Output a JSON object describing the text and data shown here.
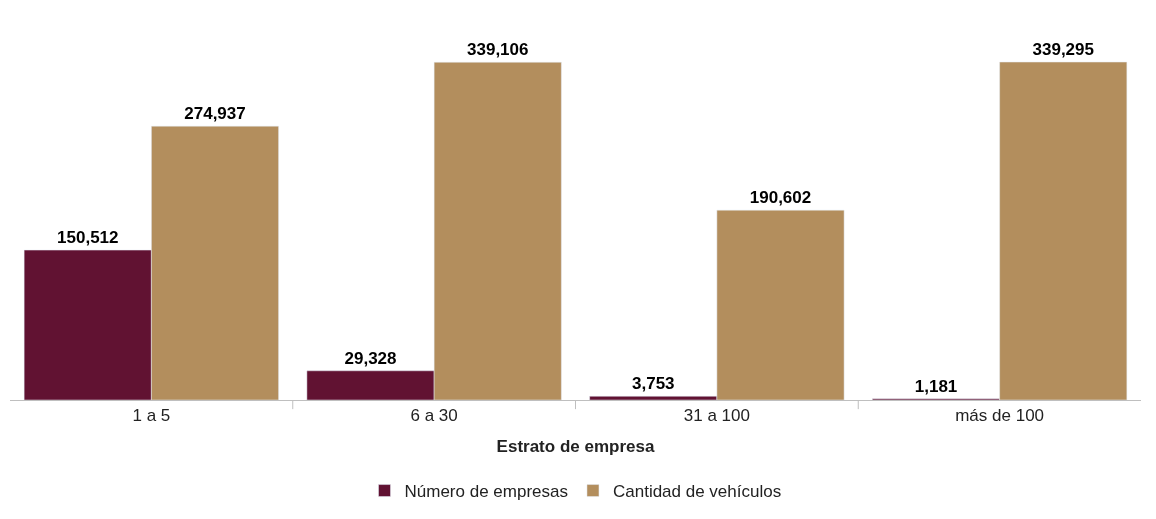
{
  "chart_data": {
    "type": "bar",
    "xlabel": "Estrato de empresa",
    "categories": [
      "1 a 5",
      "6 a 30",
      "31 a 100",
      "más de 100"
    ],
    "series": [
      {
        "name": "Número de empresas",
        "color": "#611232",
        "values": [
          150512,
          29328,
          3753,
          1181
        ],
        "value_labels": [
          "150,512",
          "29,328",
          "3,753",
          "1,181"
        ]
      },
      {
        "name": "Cantidad de vehículos",
        "color": "#b38e5d",
        "values": [
          274937,
          339106,
          190602,
          339295
        ],
        "value_labels": [
          "274,937",
          "339,106",
          "190,602",
          "339,295"
        ]
      }
    ],
    "legend": "bottom",
    "tick_labels": "x"
  }
}
